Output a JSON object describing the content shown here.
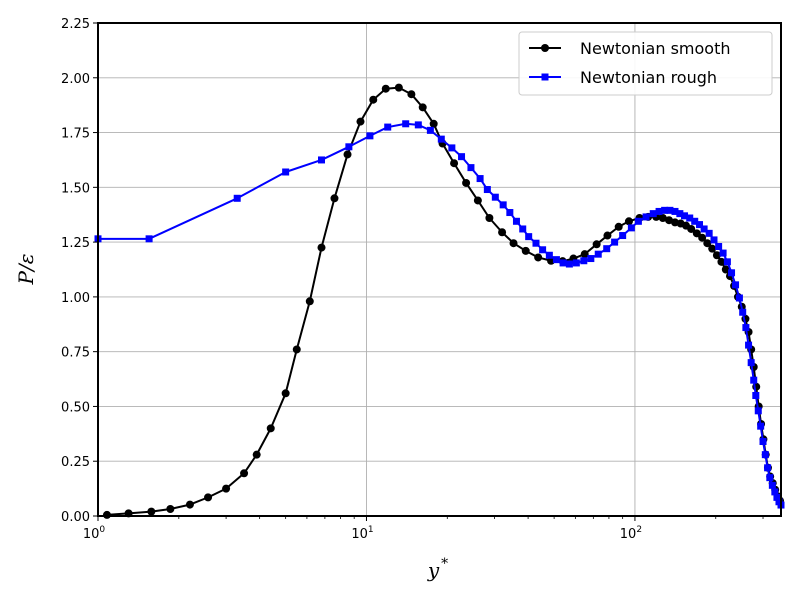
{
  "chart_data": {
    "type": "line",
    "title": "",
    "xlabel": "y",
    "xlabel_sup": "*",
    "ylabel": "P/ε",
    "xscale": "log",
    "xlim": [
      1,
      350
    ],
    "ylim": [
      0,
      2.25
    ],
    "grid": true,
    "legend_position": "top-right",
    "x_ticks": [
      {
        "value": 1,
        "base": "10",
        "exp": "0"
      },
      {
        "value": 10,
        "base": "10",
        "exp": "1"
      },
      {
        "value": 100,
        "base": "10",
        "exp": "2"
      }
    ],
    "y_ticks": [
      {
        "value": 0,
        "label": "0.00"
      },
      {
        "value": 0.25,
        "label": "0.25"
      },
      {
        "value": 0.5,
        "label": "0.50"
      },
      {
        "value": 0.75,
        "label": "0.75"
      },
      {
        "value": 1.0,
        "label": "1.00"
      },
      {
        "value": 1.25,
        "label": "1.25"
      },
      {
        "value": 1.5,
        "label": "1.50"
      },
      {
        "value": 1.75,
        "label": "1.75"
      },
      {
        "value": 2.0,
        "label": "2.00"
      },
      {
        "value": 2.25,
        "label": "2.25"
      }
    ],
    "series": [
      {
        "name": "Newtonian smooth",
        "color": "#000000",
        "marker": "circle",
        "points": [
          [
            1.08,
            0.005
          ],
          [
            1.3,
            0.012
          ],
          [
            1.58,
            0.02
          ],
          [
            1.86,
            0.032
          ],
          [
            2.2,
            0.052
          ],
          [
            2.57,
            0.085
          ],
          [
            3.0,
            0.125
          ],
          [
            3.5,
            0.195
          ],
          [
            3.9,
            0.28
          ],
          [
            4.4,
            0.4
          ],
          [
            5.0,
            0.56
          ],
          [
            5.5,
            0.76
          ],
          [
            6.15,
            0.98
          ],
          [
            6.8,
            1.225
          ],
          [
            7.6,
            1.45
          ],
          [
            8.5,
            1.65
          ],
          [
            9.5,
            1.8
          ],
          [
            10.6,
            1.9
          ],
          [
            11.8,
            1.95
          ],
          [
            13.2,
            1.955
          ],
          [
            14.7,
            1.925
          ],
          [
            16.2,
            1.865
          ],
          [
            17.8,
            1.79
          ],
          [
            19.2,
            1.7
          ],
          [
            21.2,
            1.61
          ],
          [
            23.5,
            1.52
          ],
          [
            26.0,
            1.44
          ],
          [
            28.7,
            1.36
          ],
          [
            32.0,
            1.295
          ],
          [
            35.3,
            1.245
          ],
          [
            39.2,
            1.21
          ],
          [
            43.6,
            1.18
          ],
          [
            48.7,
            1.165
          ],
          [
            53.8,
            1.163
          ],
          [
            59.0,
            1.175
          ],
          [
            65.0,
            1.195
          ],
          [
            72.0,
            1.24
          ],
          [
            79.0,
            1.28
          ],
          [
            87.0,
            1.32
          ],
          [
            95.0,
            1.345
          ],
          [
            104.0,
            1.36
          ],
          [
            112.0,
            1.365
          ],
          [
            120.0,
            1.365
          ],
          [
            127.0,
            1.36
          ],
          [
            134.0,
            1.35
          ],
          [
            141.0,
            1.34
          ],
          [
            148.0,
            1.335
          ],
          [
            155.0,
            1.325
          ],
          [
            162.0,
            1.31
          ],
          [
            170.0,
            1.29
          ],
          [
            178.0,
            1.27
          ],
          [
            186.0,
            1.245
          ],
          [
            194.0,
            1.22
          ],
          [
            202.0,
            1.19
          ],
          [
            210.0,
            1.16
          ],
          [
            218.0,
            1.125
          ],
          [
            226.0,
            1.095
          ],
          [
            234.0,
            1.05
          ],
          [
            242.0,
            1.0
          ],
          [
            250.0,
            0.955
          ],
          [
            258.0,
            0.9
          ],
          [
            265.0,
            0.84
          ],
          [
            271.0,
            0.76
          ],
          [
            277.0,
            0.68
          ],
          [
            283.0,
            0.59
          ],
          [
            289.0,
            0.5
          ],
          [
            295.0,
            0.42
          ],
          [
            301.0,
            0.35
          ],
          [
            307.0,
            0.28
          ],
          [
            313.0,
            0.22
          ],
          [
            319.0,
            0.18
          ],
          [
            326.0,
            0.15
          ],
          [
            333.0,
            0.12
          ],
          [
            340.0,
            0.09
          ],
          [
            347.0,
            0.07
          ]
        ]
      },
      {
        "name": "Newtonian rough",
        "color": "#0000ff",
        "marker": "square",
        "points": [
          [
            1.0,
            1.265
          ],
          [
            1.55,
            1.265
          ],
          [
            3.3,
            1.45
          ],
          [
            5.0,
            1.57
          ],
          [
            6.8,
            1.625
          ],
          [
            8.6,
            1.685
          ],
          [
            10.3,
            1.735
          ],
          [
            12.0,
            1.775
          ],
          [
            14.0,
            1.79
          ],
          [
            15.6,
            1.785
          ],
          [
            17.3,
            1.76
          ],
          [
            19.0,
            1.72
          ],
          [
            20.8,
            1.68
          ],
          [
            22.6,
            1.64
          ],
          [
            24.5,
            1.59
          ],
          [
            26.5,
            1.54
          ],
          [
            28.2,
            1.49
          ],
          [
            30.2,
            1.455
          ],
          [
            32.3,
            1.42
          ],
          [
            34.2,
            1.385
          ],
          [
            36.2,
            1.345
          ],
          [
            38.2,
            1.31
          ],
          [
            40.2,
            1.275
          ],
          [
            42.8,
            1.245
          ],
          [
            45.3,
            1.215
          ],
          [
            48.0,
            1.19
          ],
          [
            51.0,
            1.17
          ],
          [
            54.0,
            1.155
          ],
          [
            57.0,
            1.15
          ],
          [
            60.5,
            1.155
          ],
          [
            64.5,
            1.165
          ],
          [
            68.5,
            1.175
          ],
          [
            73.0,
            1.195
          ],
          [
            78.5,
            1.22
          ],
          [
            84.0,
            1.25
          ],
          [
            90.0,
            1.28
          ],
          [
            97.0,
            1.315
          ],
          [
            103.0,
            1.345
          ],
          [
            110.0,
            1.365
          ],
          [
            117.0,
            1.38
          ],
          [
            123.0,
            1.39
          ],
          [
            129.0,
            1.395
          ],
          [
            135.0,
            1.395
          ],
          [
            141.0,
            1.39
          ],
          [
            147.0,
            1.38
          ],
          [
            153.0,
            1.37
          ],
          [
            160.0,
            1.36
          ],
          [
            167.0,
            1.345
          ],
          [
            174.0,
            1.33
          ],
          [
            181.0,
            1.31
          ],
          [
            189.0,
            1.29
          ],
          [
            197.0,
            1.26
          ],
          [
            205.0,
            1.23
          ],
          [
            213.0,
            1.2
          ],
          [
            221.0,
            1.16
          ],
          [
            229.0,
            1.11
          ],
          [
            237.0,
            1.055
          ],
          [
            245.0,
            0.995
          ],
          [
            252.0,
            0.93
          ],
          [
            259.0,
            0.86
          ],
          [
            265.0,
            0.78
          ],
          [
            271.0,
            0.7
          ],
          [
            277.0,
            0.62
          ],
          [
            282.0,
            0.55
          ],
          [
            288.0,
            0.48
          ],
          [
            294.0,
            0.41
          ],
          [
            300.0,
            0.34
          ],
          [
            306.0,
            0.28
          ],
          [
            312.0,
            0.22
          ],
          [
            318.0,
            0.175
          ],
          [
            325.0,
            0.14
          ],
          [
            332.0,
            0.11
          ],
          [
            338.0,
            0.085
          ],
          [
            344.0,
            0.065
          ],
          [
            350.0,
            0.05
          ]
        ]
      }
    ]
  }
}
